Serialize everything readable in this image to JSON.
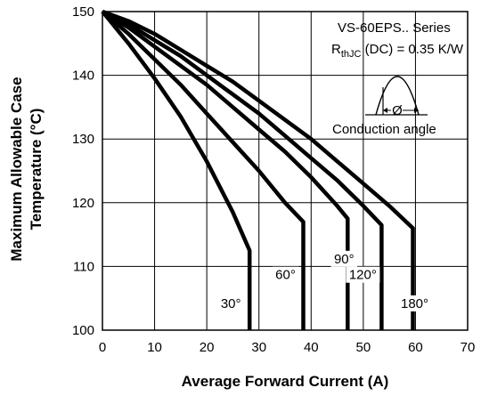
{
  "chart_data": {
    "type": "line",
    "title": "",
    "xlabel": "Average Forward Current (A)",
    "ylabel_line1": "Maximum Allowable Case",
    "ylabel_line2": "Temperature (°C)",
    "xlim": [
      0,
      70
    ],
    "ylim": [
      100,
      150
    ],
    "x_ticks": [
      "0",
      "10",
      "20",
      "30",
      "40",
      "50",
      "60",
      "70"
    ],
    "y_ticks": [
      "100",
      "110",
      "120",
      "130",
      "140",
      "150"
    ],
    "grid": true,
    "annotations": {
      "series_title": "VS-60EPS.. Series",
      "rth_prefix": "R",
      "rth_sub": "thJC",
      "rth_suffix": " (DC) = 0.35 K/W",
      "phi_symbol": "Ø",
      "conduction_label": "Conduction angle"
    },
    "series": [
      {
        "name": "30°",
        "x": [
          0,
          5,
          10,
          15,
          20,
          25,
          28.2,
          28.2
        ],
        "y": [
          150,
          145,
          139.5,
          133.5,
          126.5,
          118.5,
          112.5,
          100
        ]
      },
      {
        "name": "60°",
        "x": [
          0,
          5,
          10,
          15,
          20,
          25,
          30,
          35,
          38.5,
          38.5
        ],
        "y": [
          150,
          146.5,
          142.5,
          138.5,
          134,
          129.5,
          125,
          120,
          117,
          100
        ]
      },
      {
        "name": "90°",
        "x": [
          0,
          5,
          10,
          15,
          20,
          25,
          30,
          35,
          40,
          45,
          47,
          47
        ],
        "y": [
          150,
          147.5,
          144.5,
          141.5,
          138.5,
          135,
          131.5,
          128,
          124,
          119.5,
          117.5,
          100
        ]
      },
      {
        "name": "120°",
        "x": [
          0,
          5,
          10,
          15,
          20,
          25,
          30,
          35,
          40,
          45,
          50,
          53.5,
          53.5
        ],
        "y": [
          150,
          148,
          145.5,
          143,
          140,
          137,
          134,
          130.5,
          127,
          123.5,
          119.5,
          116.5,
          100
        ]
      },
      {
        "name": "180°",
        "x": [
          0,
          5,
          10,
          15,
          20,
          25,
          30,
          35,
          40,
          45,
          50,
          55,
          59.5,
          59.5
        ],
        "y": [
          150,
          148.5,
          146.5,
          144,
          141.5,
          139,
          136,
          133,
          130,
          126.5,
          123,
          119.5,
          116,
          100
        ]
      }
    ]
  }
}
